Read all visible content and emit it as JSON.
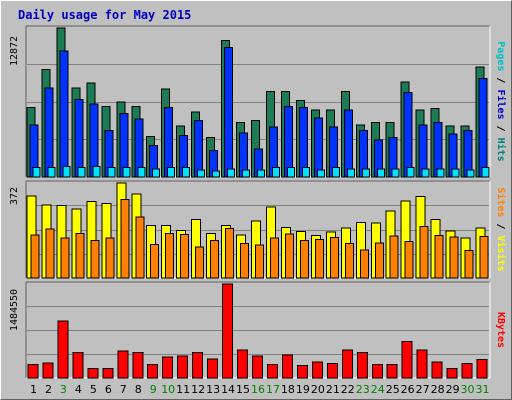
{
  "chart_data": {
    "type": "bar",
    "title": "Daily usage for May 2015",
    "categories": [
      "1",
      "2",
      "3",
      "4",
      "5",
      "6",
      "7",
      "8",
      "9",
      "10",
      "11",
      "12",
      "13",
      "14",
      "15",
      "16",
      "17",
      "18",
      "19",
      "20",
      "21",
      "22",
      "23",
      "24",
      "25",
      "26",
      "27",
      "28",
      "29",
      "30",
      "31"
    ],
    "weekend_days": [
      "3",
      "9",
      "10",
      "16",
      "17",
      "23",
      "24",
      "30",
      "31"
    ],
    "colors": {
      "hits": "#1e7c55",
      "files": "#0033ff",
      "pages": "#00e0ff",
      "visits": "#ffff00",
      "sites": "#ff8000",
      "kbytes": "#ff0000",
      "weekday_label": "#000000",
      "weekend_label": "#008000",
      "title": "#0000c0"
    },
    "panels": [
      {
        "name": "hits-files-pages",
        "y_max_label": "12872",
        "ymax": 12872,
        "legend": [
          {
            "text": "Pages",
            "color": "#00c0c0"
          },
          {
            "text": " / ",
            "color": "#000000"
          },
          {
            "text": "Files",
            "color": "#0000c0"
          },
          {
            "text": " / ",
            "color": "#000000"
          },
          {
            "text": "Hits",
            "color": "#008080"
          }
        ],
        "series": [
          {
            "name": "Hits",
            "values": [
              6000,
              9300,
              12872,
              7700,
              8100,
              6100,
              6500,
              6100,
              3500,
              7600,
              4400,
              5600,
              3400,
              11800,
              4700,
              4900,
              7400,
              7400,
              6600,
              5800,
              5800,
              7400,
              4500,
              4700,
              4700,
              8200,
              5800,
              5900,
              4400,
              4400,
              9500
            ]
          },
          {
            "name": "Files",
            "values": [
              4500,
              7700,
              10900,
              6700,
              6300,
              4000,
              5500,
              5000,
              2700,
              6000,
              3600,
              4900,
              2300,
              11200,
              3800,
              2400,
              4300,
              6100,
              6000,
              5100,
              4300,
              5800,
              4000,
              3200,
              3400,
              7300,
              4500,
              4700,
              3700,
              4000,
              8500
            ]
          },
          {
            "name": "Pages",
            "values": [
              800,
              800,
              900,
              800,
              900,
              800,
              800,
              800,
              700,
              800,
              800,
              600,
              500,
              700,
              600,
              600,
              800,
              800,
              800,
              600,
              800,
              700,
              700,
              700,
              700,
              800,
              700,
              700,
              700,
              600,
              800
            ]
          }
        ]
      },
      {
        "name": "visits-sites",
        "y_max_label": "372",
        "ymax": 372,
        "legend": [
          {
            "text": "Sites",
            "color": "#ff8000"
          },
          {
            "text": " / ",
            "color": "#000000"
          },
          {
            "text": "Visits",
            "color": "#ffff00"
          }
        ],
        "series": [
          {
            "name": "Visits",
            "values": [
              322,
              285,
              283,
              271,
              299,
              292,
              372,
              329,
              206,
              205,
              186,
              229,
              175,
              206,
              169,
              223,
              278,
              197,
              182,
              166,
              181,
              195,
              217,
              215,
              263,
              301,
              319,
              229,
              184,
              157,
              195
            ]
          },
          {
            "name": "Sites",
            "values": [
              168,
              191,
              157,
              174,
              147,
              157,
              308,
              238,
              131,
              175,
              171,
              121,
              146,
              194,
              136,
              129,
              156,
              172,
              146,
              150,
              159,
              135,
              110,
              138,
              165,
              143,
              201,
              166,
              160,
              108,
              162
            ]
          }
        ]
      },
      {
        "name": "kbytes",
        "y_max_label": "1484550",
        "ymax": 1484550,
        "legend": [
          {
            "text": "KBytes",
            "color": "#ff0000"
          }
        ],
        "series": [
          {
            "name": "KBytes",
            "values": [
              210000,
              240000,
              900000,
              400000,
              150000,
              150000,
              430000,
              400000,
              210000,
              330000,
              350000,
              400000,
              300000,
              1484550,
              440000,
              350000,
              210000,
              360000,
              200000,
              250000,
              230000,
              440000,
              400000,
              210000,
              210000,
              580000,
              440000,
              250000,
              150000,
              230000,
              290000
            ]
          }
        ]
      }
    ]
  }
}
